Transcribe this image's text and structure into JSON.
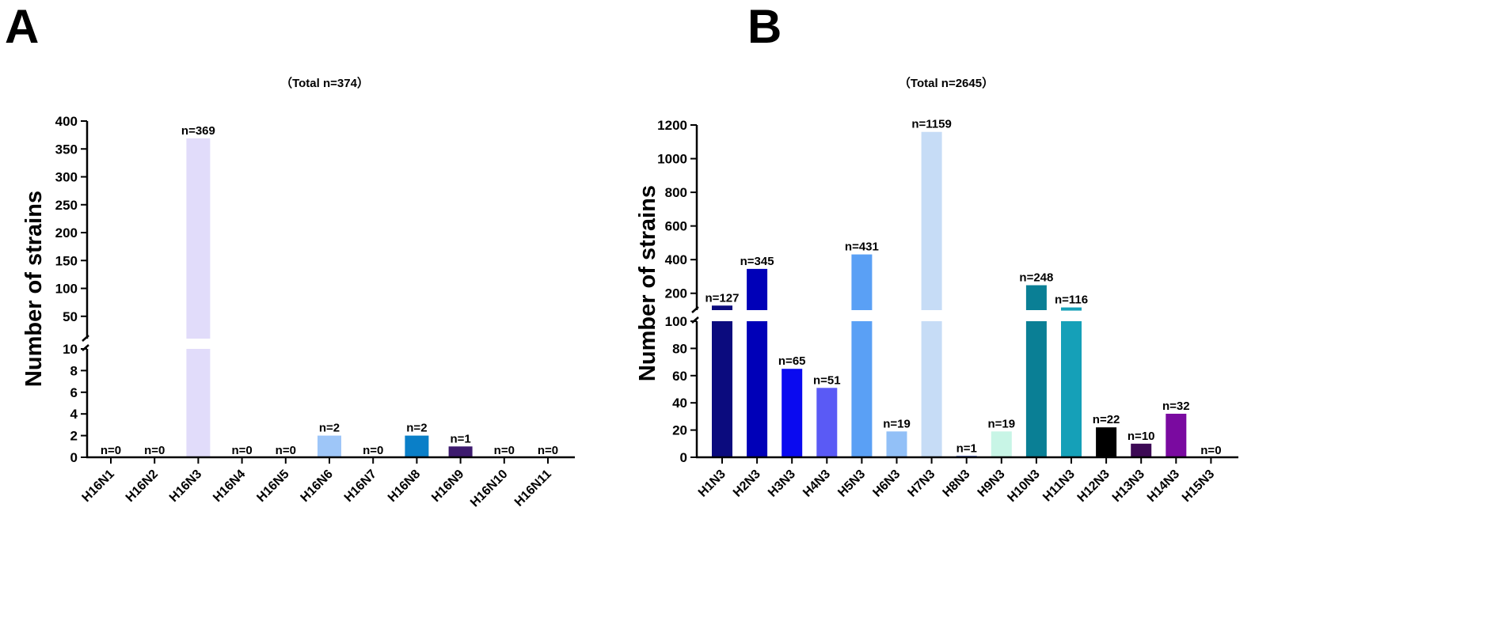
{
  "panels": {
    "a": "A",
    "b": "B"
  },
  "chart_data": [
    {
      "type": "bar",
      "panel": "A",
      "title": "（Total n=374）",
      "xlabel": "",
      "ylabel": "Number of strains",
      "axis_break": {
        "lower_range": [
          0,
          10
        ],
        "upper_range": [
          10,
          400
        ]
      },
      "lower_ticks": [
        0,
        2,
        4,
        6,
        8,
        10
      ],
      "upper_ticks": [
        50,
        100,
        150,
        200,
        250,
        300,
        350,
        400
      ],
      "categories": [
        "H16N1",
        "H16N2",
        "H16N3",
        "H16N4",
        "H16N5",
        "H16N6",
        "H16N7",
        "H16N8",
        "H16N9",
        "H16N10",
        "H16N11"
      ],
      "values": [
        0,
        0,
        369,
        0,
        0,
        2,
        0,
        2,
        1,
        0,
        0
      ],
      "labels": [
        "n=0",
        "n=0",
        "n=369",
        "n=0",
        "n=0",
        "n=2",
        "n=0",
        "n=2",
        "n=1",
        "n=0",
        "n=0"
      ],
      "colors": [
        "#0a0a80",
        "#0000b0",
        "#e1dcfa",
        "#5a5af0",
        "#5fa0f5",
        "#9ec6f8",
        "#c7ddf8",
        "#0a7fc8",
        "#3d1a6e",
        "#0a7f95",
        "#15a0b8"
      ]
    },
    {
      "type": "bar",
      "panel": "B",
      "title": "（Total n=2645）",
      "xlabel": "",
      "ylabel": "Number of strains",
      "axis_break": {
        "lower_range": [
          0,
          100
        ],
        "upper_range": [
          100,
          1200
        ]
      },
      "lower_ticks": [
        0,
        20,
        40,
        60,
        80,
        100
      ],
      "upper_ticks": [
        200,
        400,
        600,
        800,
        1000,
        1200
      ],
      "categories": [
        "H1N3",
        "H2N3",
        "H3N3",
        "H4N3",
        "H5N3",
        "H6N3",
        "H7N3",
        "H8N3",
        "H9N3",
        "H10N3",
        "H11N3",
        "H12N3",
        "H13N3",
        "H14N3",
        "H15N3"
      ],
      "values": [
        127,
        345,
        65,
        51,
        431,
        19,
        1159,
        1,
        19,
        248,
        116,
        22,
        10,
        32,
        0
      ],
      "labels": [
        "n=127",
        "n=345",
        "n=65",
        "n=51",
        "n=431",
        "n=19",
        "n=1159",
        "n=1",
        "n=19",
        "n=248",
        "n=116",
        "n=22",
        "n=10",
        "n=32",
        "n=0"
      ],
      "colors": [
        "#0b0b7e",
        "#0000b8",
        "#0a0af0",
        "#5a5af5",
        "#5aa0f5",
        "#92c0f7",
        "#c6dcf6",
        "#2a4ac0",
        "#c8f5e6",
        "#0a7f95",
        "#15a0b8",
        "#000000",
        "#3d0a55",
        "#7a0aa0",
        "#333333"
      ]
    }
  ]
}
